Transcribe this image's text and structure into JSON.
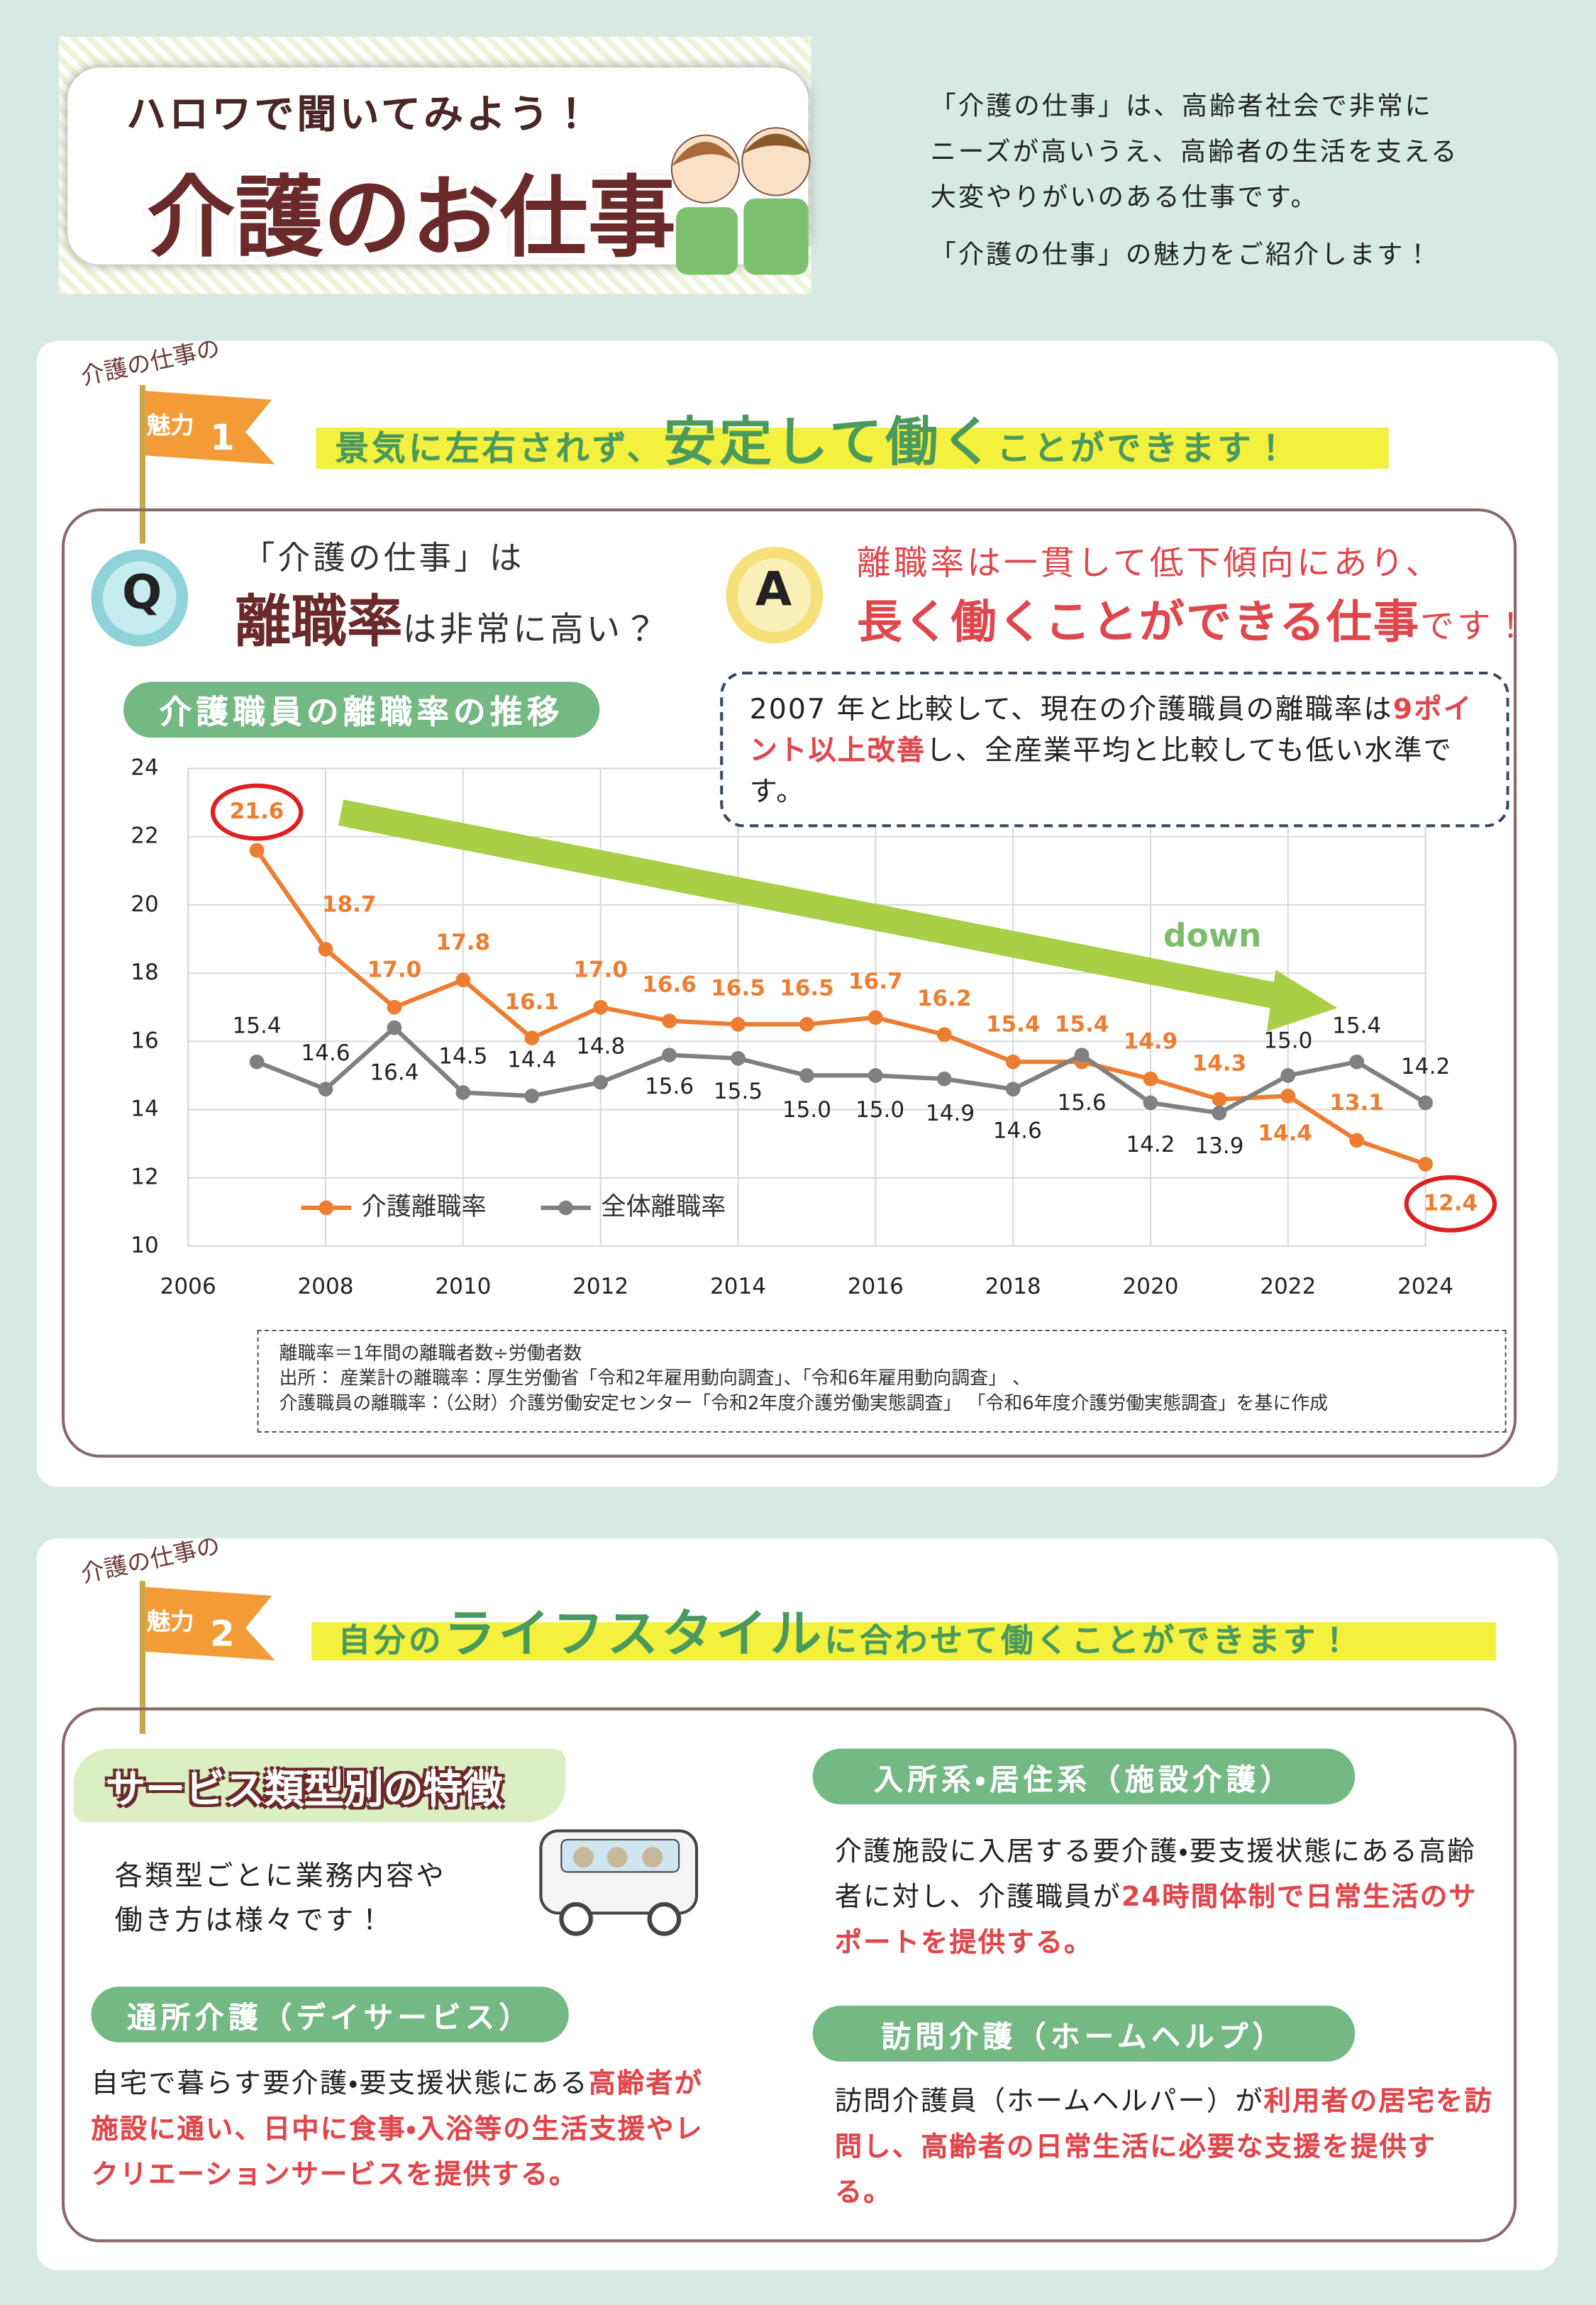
{
  "header": {
    "kicker": "ハロワで聞いてみよう！",
    "title": "介護のお仕事",
    "intro": [
      "「介護の仕事」は、高齢者社会で非常に",
      "ニーズが高いうえ、高齢者の生活を支える",
      "大変やりがいのある仕事です。",
      "「介護の仕事」の魅力をご紹介します！"
    ]
  },
  "section1": {
    "flag_top": "介護の仕事の",
    "flag_label": "魅力",
    "flag_number": "1",
    "headline_before": "景気に左右されず、",
    "headline_emphasis": "安定して働く",
    "headline_after": "ことができます！",
    "question_mark": "Q",
    "question_line1": "「介護の仕事」は",
    "question_emphasis": "離職率",
    "question_after": "は非常に高い？",
    "answer_mark": "A",
    "answer_line1": "離職率は一貫して低下傾向にあり、",
    "answer_emphasis": "長く働くことができる仕事",
    "answer_after": "です！",
    "chart_heading": "介護職員の離職率の推移",
    "note_before": "2007 年と比較して、現在の介護職員の離職率は",
    "note_highlight": "9ポイント以上改善",
    "note_after": "し、全産業平均と比較しても低い水準です。",
    "sources": [
      "離職率＝1年間の離職者数÷労働者数",
      "出所： 産業計の離職率：厚生労働省「令和2年雇用動向調査」、「令和6年雇用動向調査」 、",
      "介護職員の離職率：（公財）介護労働安定センター「令和2年度介護労働実態調査」 「令和6年度介護労働実態調査」を基に作成"
    ]
  },
  "chart_data": {
    "type": "line",
    "x": [
      2007,
      2008,
      2009,
      2010,
      2011,
      2012,
      2013,
      2014,
      2015,
      2016,
      2017,
      2018,
      2019,
      2020,
      2021,
      2022,
      2023,
      2024
    ],
    "series": [
      {
        "name": "介護離職率",
        "color": "#ed7d31",
        "values": [
          21.6,
          18.7,
          17.0,
          17.8,
          16.1,
          17.0,
          16.6,
          16.5,
          16.5,
          16.7,
          16.2,
          15.4,
          15.4,
          14.9,
          14.3,
          14.4,
          13.1,
          12.4
        ],
        "value_labels": [
          "21.6",
          "18.7",
          "17.0",
          "17.8",
          "16.1",
          "17.0",
          "16.6",
          "16.5",
          "16.5",
          "16.7",
          "16.2",
          "15.4",
          "15.4",
          "14.9",
          "14.3",
          "14.4",
          "13.1",
          "12.4"
        ]
      },
      {
        "name": "全体離職率",
        "color": "#808080",
        "values": [
          15.4,
          14.6,
          16.4,
          14.5,
          14.4,
          14.8,
          15.6,
          15.5,
          15.0,
          15.0,
          14.9,
          14.6,
          15.6,
          14.2,
          13.9,
          15.0,
          15.4,
          14.2
        ],
        "value_labels": [
          "15.4",
          "14.6",
          "16.4",
          "14.5",
          "14.4",
          "14.8",
          "15.6",
          "15.5",
          "15.0",
          "15.0",
          "14.9",
          "14.6",
          "15.6",
          "14.2",
          "13.9",
          "15.0",
          "15.4",
          "14.2"
        ]
      }
    ],
    "xlim": [
      2006,
      2024
    ],
    "xticks": [
      2006,
      2008,
      2010,
      2012,
      2014,
      2016,
      2018,
      2020,
      2022,
      2024
    ],
    "ylim": [
      10,
      24
    ],
    "yticks": [
      10,
      12,
      14,
      16,
      18,
      20,
      22,
      24
    ],
    "grid": true,
    "legend": "bottom-left",
    "annotation": "down"
  },
  "section2": {
    "flag_top": "介護の仕事の",
    "flag_label": "魅力",
    "flag_number": "2",
    "headline_before": "自分の",
    "headline_emphasis": "ライフスタイル",
    "headline_after": "に合わせて働くことができます！",
    "feature_heading": "サービス類型別の特徴",
    "feature_text": [
      "各類型ごとに業務内容や",
      "働き方は様々です！"
    ],
    "day_service": {
      "heading": "通所介護（デイサービス）",
      "text": "自宅で暮らす要介護・要支援状態にある",
      "highlight": "高齢者が施設に通い、日中に食事・入浴等の生活支援やレクリエーションサービスを提供する。"
    },
    "residential": {
      "heading": "入所系・居住系（施設介護）",
      "text": "介護施設に入居する要介護・要支援状態にある高齢者に対し、介護職員が",
      "highlight": "24時間体制で日常生活のサポートを提供する。"
    },
    "home_visit": {
      "heading": "訪問介護（ホームヘルプ）",
      "text": "訪問介護員（ホームヘルパー）が",
      "highlight": "利用者の居宅を訪問し、高齢者の日常生活に必要な支援を提供する。"
    }
  }
}
